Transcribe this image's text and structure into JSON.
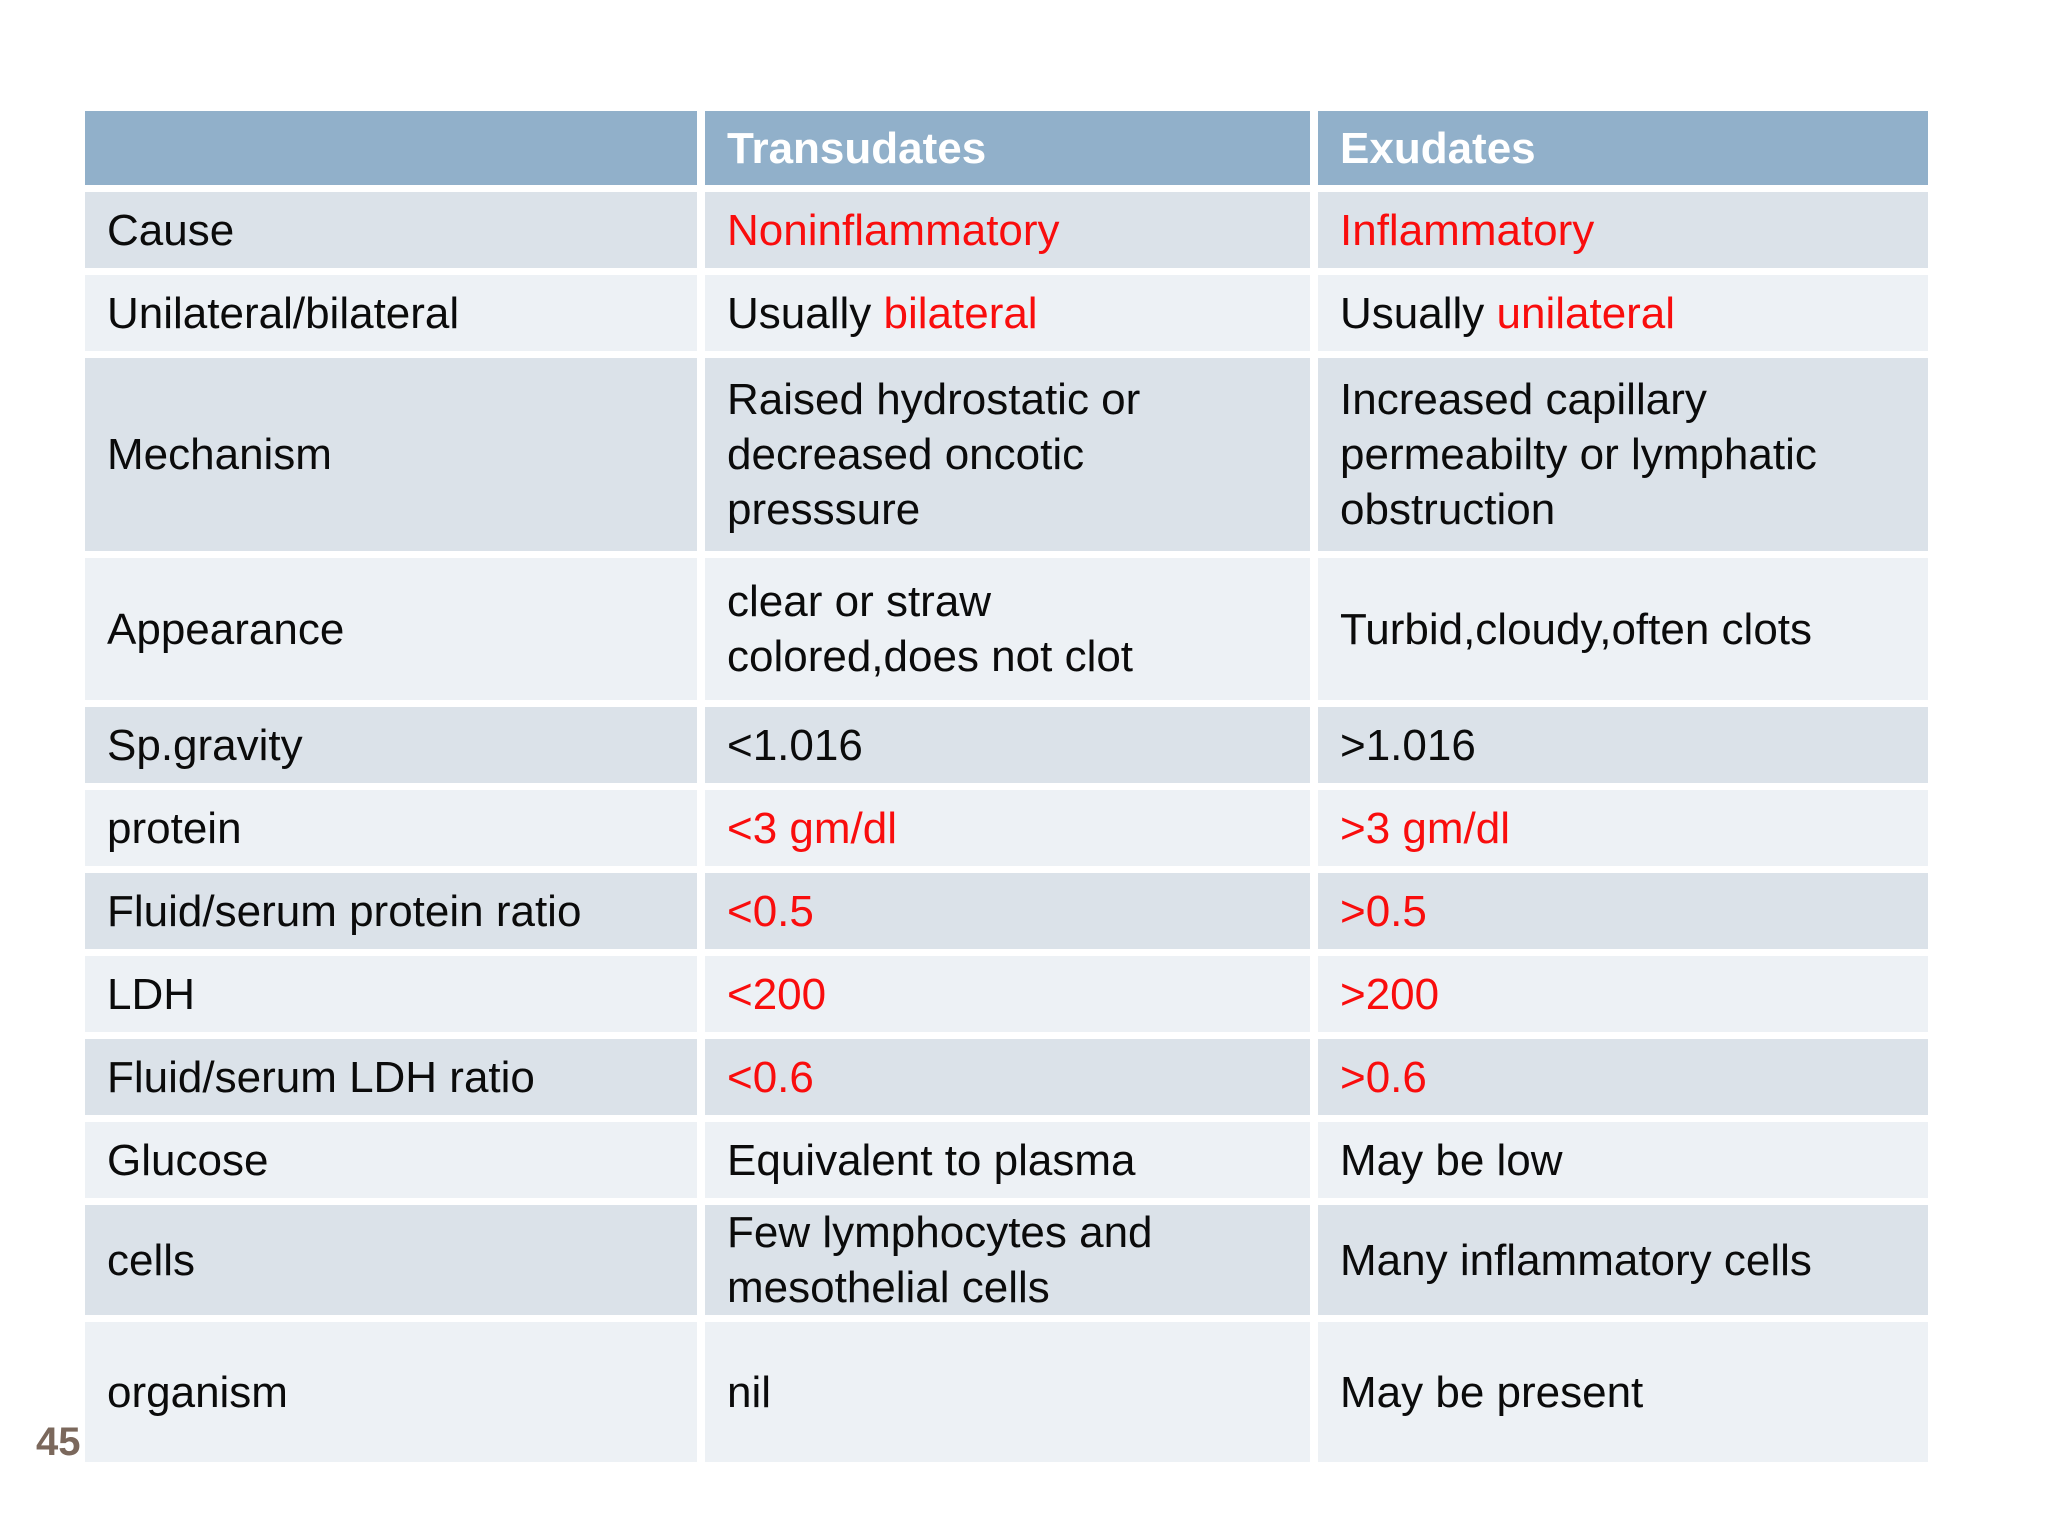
{
  "page": {
    "number": "45"
  },
  "colors": {
    "header_bg": "#91B0CA",
    "header_text": "#FFFFFF",
    "band_dark": "#DBE2E9",
    "band_light": "#EDF1F5",
    "accent_red": "#F90D0D",
    "text": "#0B0B0B",
    "page_number": "#7B685C",
    "background": "#FFFFFF"
  },
  "table": {
    "columns": [
      "",
      "Transudates",
      "Exudates"
    ],
    "rows": [
      {
        "id": "cause",
        "label": "Cause",
        "transudates": [
          {
            "text": "Noninflammatory",
            "color": "red"
          }
        ],
        "exudates": [
          {
            "text": "Inflammatory",
            "color": "red"
          }
        ]
      },
      {
        "id": "unilateral-bilateral",
        "label": "Unilateral/bilateral",
        "transudates": [
          {
            "text": "Usually ",
            "color": "black"
          },
          {
            "text": "bilateral",
            "color": "red"
          }
        ],
        "exudates": [
          {
            "text": "Usually ",
            "color": "black"
          },
          {
            "text": "unilateral",
            "color": "red"
          }
        ]
      },
      {
        "id": "mechanism",
        "label": "Mechanism",
        "transudates": [
          {
            "text": "Raised hydrostatic or\ndecreased oncotic\npresssure",
            "color": "black"
          }
        ],
        "exudates": [
          {
            "text": "Increased capillary\npermeabilty or lymphatic\nobstruction",
            "color": "black"
          }
        ]
      },
      {
        "id": "appearance",
        "label": "Appearance",
        "transudates": [
          {
            "text": "clear or straw\ncolored,does not clot",
            "color": "black"
          }
        ],
        "exudates": [
          {
            "text": "Turbid,cloudy,often clots",
            "color": "black"
          }
        ]
      },
      {
        "id": "sp-gravity",
        "label": "Sp.gravity",
        "transudates": [
          {
            "text": "<1.016",
            "color": "black"
          }
        ],
        "exudates": [
          {
            "text": ">1.016",
            "color": "black"
          }
        ]
      },
      {
        "id": "protein",
        "label": "protein",
        "transudates": [
          {
            "text": "<3 gm/dl",
            "color": "red"
          }
        ],
        "exudates": [
          {
            "text": ">3 gm/dl",
            "color": "red"
          }
        ]
      },
      {
        "id": "fluid-serum-protein-ratio",
        "label": "Fluid/serum protein ratio",
        "transudates": [
          {
            "text": "<0.5",
            "color": "red"
          }
        ],
        "exudates": [
          {
            "text": ">0.5",
            "color": "red"
          }
        ]
      },
      {
        "id": "ldh",
        "label": "LDH",
        "transudates": [
          {
            "text": "<200",
            "color": "red"
          }
        ],
        "exudates": [
          {
            "text": ">200",
            "color": "red"
          }
        ]
      },
      {
        "id": "fluid-serum-ldh-ratio",
        "label": "Fluid/serum LDH ratio",
        "transudates": [
          {
            "text": "<0.6",
            "color": "red"
          }
        ],
        "exudates": [
          {
            "text": ">0.6",
            "color": "red"
          }
        ]
      },
      {
        "id": "glucose",
        "label": "Glucose",
        "transudates": [
          {
            "text": "Equivalent to plasma",
            "color": "black"
          }
        ],
        "exudates": [
          {
            "text": "May be low",
            "color": "black"
          }
        ]
      },
      {
        "id": "cells",
        "label": "cells",
        "transudates": [
          {
            "text": "Few lymphocytes and\nmesothelial cells",
            "color": "black"
          }
        ],
        "exudates": [
          {
            "text": "Many inflammatory cells",
            "color": "black"
          }
        ]
      },
      {
        "id": "organism",
        "label": "organism",
        "transudates": [
          {
            "text": "nil",
            "color": "black"
          }
        ],
        "exudates": [
          {
            "text": "May be present",
            "color": "black"
          }
        ]
      }
    ]
  }
}
